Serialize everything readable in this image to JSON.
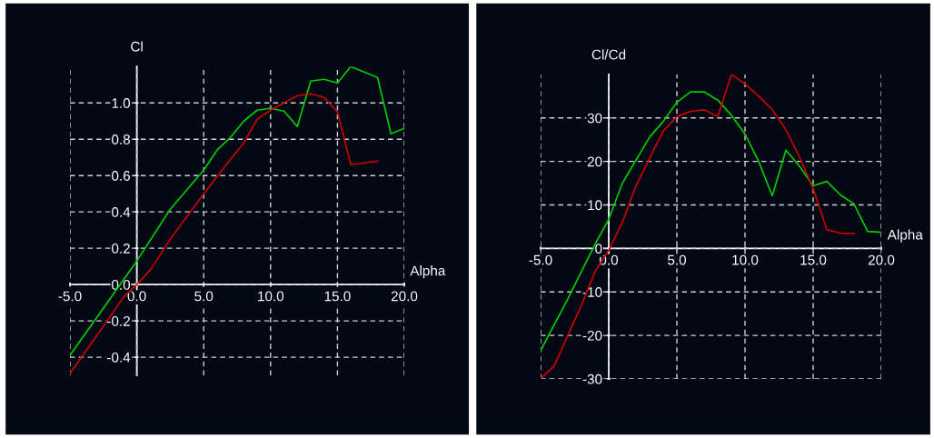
{
  "chart_data": [
    {
      "type": "line",
      "xlabel": "Alpha",
      "ylabel": "Cl",
      "xlim": [
        -5,
        20
      ],
      "ylim": [
        -0.5,
        1.2
      ],
      "xticks": [
        {
          "value": -5,
          "label": "-5.0"
        },
        {
          "value": 0,
          "label": "0.0"
        },
        {
          "value": 5,
          "label": "5.0"
        },
        {
          "value": 10,
          "label": "10.0"
        },
        {
          "value": 15,
          "label": "15.0"
        },
        {
          "value": 20,
          "label": "20.0"
        }
      ],
      "yticks": [
        {
          "value": -0.4,
          "label": "-0.4"
        },
        {
          "value": -0.2,
          "label": "-0.2"
        },
        {
          "value": 0,
          "label": "0.0"
        },
        {
          "value": 0.2,
          "label": "0.2"
        },
        {
          "value": 0.4,
          "label": "0.4"
        },
        {
          "value": 0.6,
          "label": "0.6"
        },
        {
          "value": 0.8,
          "label": "0.8"
        },
        {
          "value": 1.0,
          "label": "1.0"
        }
      ],
      "grid": true,
      "line_style": "solid",
      "marker": "none",
      "series": [
        {
          "color": "#00cc00",
          "x": [
            -5,
            0,
            2.5,
            5,
            6,
            7,
            8,
            9,
            10,
            11,
            12,
            13,
            14,
            15,
            16,
            17,
            18,
            19,
            20
          ],
          "values": [
            -0.39,
            0.13,
            0.415,
            0.63,
            0.74,
            0.81,
            0.9,
            0.96,
            0.97,
            0.955,
            0.87,
            1.12,
            1.13,
            1.11,
            1.2,
            1.17,
            1.14,
            0.83,
            0.86
          ]
        },
        {
          "color": "#cc0000",
          "x": [
            -5,
            -2.5,
            -1,
            0,
            0.5,
            1,
            2.5,
            5,
            7,
            8,
            9,
            10,
            11,
            12,
            13,
            14,
            15,
            16,
            17,
            18
          ],
          "values": [
            -0.49,
            -0.23,
            -0.07,
            0,
            0.04,
            0.08,
            0.25,
            0.5,
            0.69,
            0.78,
            0.91,
            0.96,
            1.0,
            1.04,
            1.05,
            1.03,
            0.95,
            0.66,
            0.67,
            0.68
          ]
        }
      ]
    },
    {
      "type": "line",
      "xlabel": "Alpha",
      "ylabel": "Cl/Cd",
      "xlim": [
        -5,
        20
      ],
      "ylim": [
        -30,
        40
      ],
      "xticks": [
        {
          "value": -5,
          "label": "-5.0"
        },
        {
          "value": 0,
          "label": "0.0"
        },
        {
          "value": 5,
          "label": "5.0"
        },
        {
          "value": 10,
          "label": "10.0"
        },
        {
          "value": 15,
          "label": "15.0"
        },
        {
          "value": 20,
          "label": "20.0"
        }
      ],
      "yticks": [
        -30,
        -20,
        -10,
        0,
        10,
        20,
        30
      ],
      "grid": true,
      "line_style": "solid",
      "marker": "none",
      "series": [
        {
          "color": "#00cc00",
          "x": [
            -5,
            -3,
            -1,
            0,
            1,
            2,
            3,
            4,
            5,
            6,
            7,
            8,
            9,
            10,
            11,
            12,
            13,
            14,
            15,
            16,
            17,
            18,
            19,
            20
          ],
          "values": [
            -23.5,
            -11.6,
            1.0,
            6.7,
            15,
            20.3,
            25.6,
            29.2,
            33.6,
            36,
            36,
            34.1,
            30.6,
            26.3,
            20,
            12.1,
            22.6,
            18.9,
            14.4,
            15.4,
            12.3,
            10.2,
            3.9,
            3.7
          ]
        },
        {
          "color": "#cc0000",
          "x": [
            -5,
            -4,
            -3,
            -2,
            -1,
            0,
            1,
            2,
            3,
            4,
            5,
            6,
            7,
            8,
            9,
            10,
            11,
            12,
            13,
            14,
            15,
            16,
            17,
            18
          ],
          "values": [
            -30,
            -27,
            -20,
            -13,
            -5.3,
            -0.4,
            6,
            14.4,
            20.7,
            27,
            30.3,
            31.5,
            31.9,
            30.3,
            40,
            37.8,
            35,
            31.9,
            27.3,
            21,
            13.7,
            4.3,
            3.5,
            3.4
          ]
        }
      ]
    }
  ]
}
